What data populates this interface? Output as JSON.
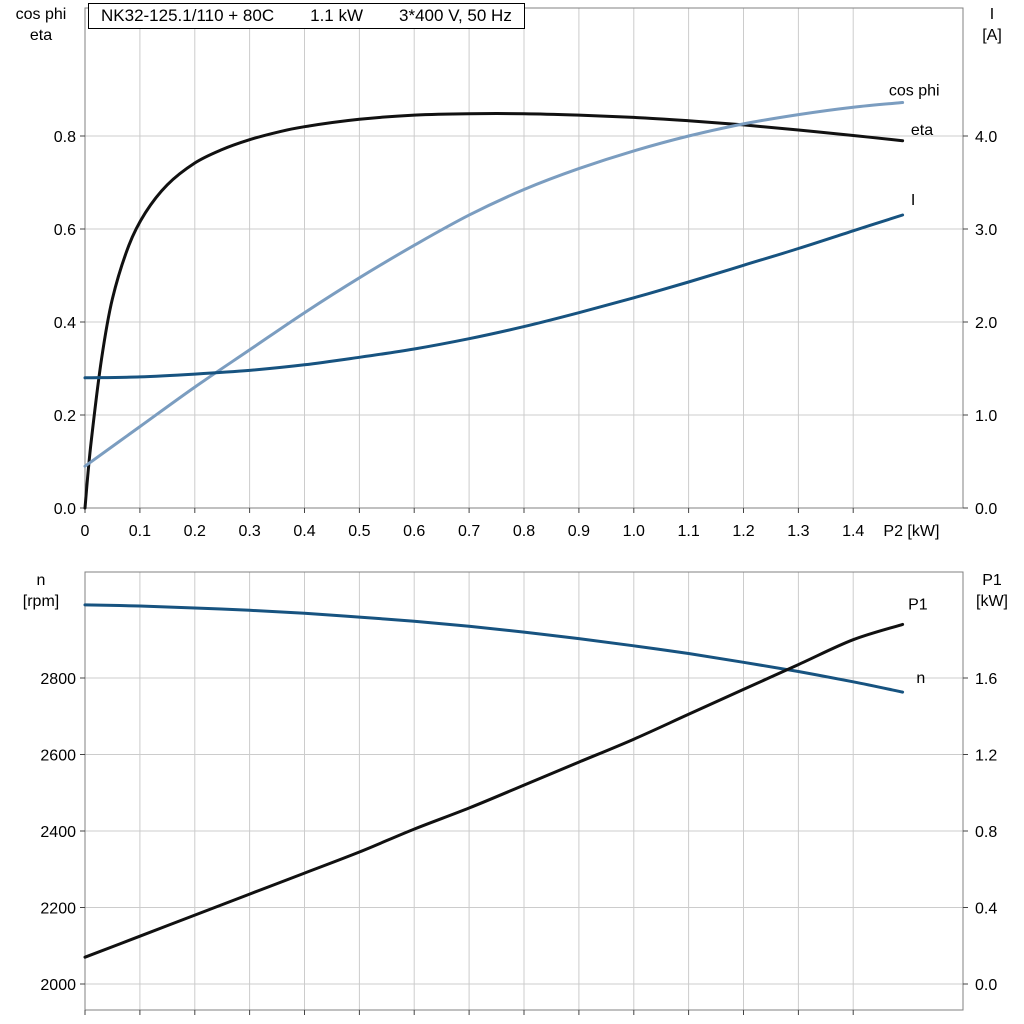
{
  "title_box": {
    "model": "NK32-125.1/110 + 80C",
    "power": "1.1 kW",
    "supply": "3*400 V, 50 Hz"
  },
  "colors": {
    "black": "#111111",
    "light_blue": "#7b9dc0",
    "dark_blue": "#175380",
    "grid": "#cccccc",
    "frame": "#808080",
    "tick": "#444444",
    "text": "#000000"
  },
  "chart_data": [
    {
      "type": "line",
      "grid": true,
      "axes": {
        "x": {
          "label": "P2 [kW]",
          "label_x": 1.455,
          "range": [
            0,
            1.6
          ],
          "tick_values": [
            0,
            0.1,
            0.2,
            0.3,
            0.4,
            0.5,
            0.6,
            0.7,
            0.8,
            0.9,
            1.0,
            1.1,
            1.2,
            1.3,
            1.4
          ],
          "tick_labels": [
            "0",
            "0.1",
            "0.2",
            "0.3",
            "0.4",
            "0.5",
            "0.6",
            "0.7",
            "0.8",
            "0.9",
            "1.0",
            "1.1",
            "1.2",
            "1.3",
            "1.4"
          ]
        },
        "left": {
          "label": [
            "cos phi",
            "eta"
          ],
          "range": [
            0,
            1.0753
          ],
          "tick_values": [
            0,
            0.2,
            0.4,
            0.6,
            0.8
          ],
          "tick_labels": [
            "0.0",
            "0.2",
            "0.4",
            "0.6",
            "0.8"
          ]
        },
        "right": {
          "label": [
            "I",
            "[A]"
          ],
          "range": [
            0,
            5.376
          ],
          "tick_values": [
            0,
            1,
            2,
            3,
            4
          ],
          "tick_labels": [
            "0.0",
            "1.0",
            "2.0",
            "3.0",
            "4.0"
          ]
        }
      },
      "series": [
        {
          "name": "eta",
          "axis": "left",
          "color": "#111111",
          "x": [
            0,
            0.01,
            0.03,
            0.05,
            0.08,
            0.11,
            0.15,
            0.2,
            0.25,
            0.3,
            0.35,
            0.4,
            0.5,
            0.6,
            0.7,
            0.8,
            0.9,
            1.0,
            1.1,
            1.2,
            1.3,
            1.4,
            1.49
          ],
          "y": [
            0,
            0.13,
            0.32,
            0.45,
            0.565,
            0.635,
            0.695,
            0.742,
            0.771,
            0.792,
            0.808,
            0.82,
            0.836,
            0.845,
            0.848,
            0.848,
            0.845,
            0.84,
            0.833,
            0.824,
            0.813,
            0.801,
            0.79
          ]
        },
        {
          "name": "cos phi",
          "axis": "left",
          "color": "#7b9dc0",
          "x": [
            0,
            0.1,
            0.2,
            0.3,
            0.4,
            0.5,
            0.6,
            0.7,
            0.8,
            0.9,
            1.0,
            1.1,
            1.2,
            1.3,
            1.4,
            1.49
          ],
          "y": [
            0.09,
            0.175,
            0.26,
            0.34,
            0.42,
            0.495,
            0.565,
            0.63,
            0.685,
            0.73,
            0.768,
            0.8,
            0.826,
            0.846,
            0.862,
            0.872
          ]
        },
        {
          "name": "I",
          "axis": "right",
          "color": "#175380",
          "x": [
            0,
            0.1,
            0.2,
            0.3,
            0.4,
            0.5,
            0.6,
            0.7,
            0.8,
            0.9,
            1.0,
            1.1,
            1.2,
            1.3,
            1.4,
            1.49
          ],
          "y": [
            1.4,
            1.41,
            1.44,
            1.48,
            1.54,
            1.62,
            1.71,
            1.82,
            1.95,
            2.1,
            2.26,
            2.43,
            2.61,
            2.79,
            2.98,
            3.15
          ]
        }
      ],
      "annotations": [
        {
          "text": "cos phi",
          "axis": "left",
          "x": 1.465,
          "y": 0.9,
          "color": "#7b9dc0"
        },
        {
          "text": "eta",
          "axis": "left",
          "x": 1.505,
          "y": 0.815,
          "color": "#111111"
        },
        {
          "text": "I",
          "axis": "right",
          "x": 1.505,
          "y": 3.32,
          "color": "#175380"
        }
      ]
    },
    {
      "type": "line",
      "grid": true,
      "axes": {
        "x": {
          "label": "",
          "label_x": 1.455,
          "range": [
            0,
            1.6
          ],
          "tick_values": [
            0,
            0.1,
            0.2,
            0.3,
            0.4,
            0.5,
            0.6,
            0.7,
            0.8,
            0.9,
            1.0,
            1.1,
            1.2,
            1.3,
            1.4
          ],
          "tick_labels": []
        },
        "left": {
          "label": [
            "n",
            "[rpm]"
          ],
          "range": [
            1932,
            3077
          ],
          "tick_values": [
            2000,
            2200,
            2400,
            2600,
            2800
          ],
          "tick_labels": [
            "2000",
            "2200",
            "2400",
            "2600",
            "2800"
          ]
        },
        "right": {
          "label": [
            "P1",
            "[kW]"
          ],
          "range": [
            -0.136,
            2.154
          ],
          "tick_values": [
            0,
            0.4,
            0.8,
            1.2,
            1.6
          ],
          "tick_labels": [
            "0.0",
            "0.4",
            "0.8",
            "1.2",
            "1.6"
          ]
        }
      },
      "series": [
        {
          "name": "n",
          "axis": "left",
          "color": "#175380",
          "x": [
            0,
            0.1,
            0.2,
            0.3,
            0.4,
            0.5,
            0.6,
            0.7,
            0.8,
            0.9,
            1.0,
            1.1,
            1.2,
            1.3,
            1.4,
            1.49
          ],
          "y": [
            2991,
            2988,
            2983,
            2977,
            2969,
            2959,
            2948,
            2935,
            2920,
            2903,
            2884,
            2864,
            2841,
            2817,
            2790,
            2763
          ]
        },
        {
          "name": "P1",
          "axis": "right",
          "color": "#111111",
          "x": [
            0,
            0.1,
            0.2,
            0.3,
            0.4,
            0.5,
            0.6,
            0.7,
            0.8,
            0.9,
            1.0,
            1.1,
            1.2,
            1.3,
            1.4,
            1.49
          ],
          "y": [
            0.14,
            0.25,
            0.36,
            0.47,
            0.58,
            0.69,
            0.81,
            0.92,
            1.04,
            1.16,
            1.28,
            1.41,
            1.54,
            1.67,
            1.8,
            1.88
          ]
        }
      ],
      "annotations": [
        {
          "text": "P1",
          "axis": "right",
          "x": 1.5,
          "y": 1.99,
          "color": "#111111"
        },
        {
          "text": "n",
          "axis": "left",
          "x": 1.515,
          "y": 2802,
          "color": "#175380"
        }
      ]
    }
  ]
}
